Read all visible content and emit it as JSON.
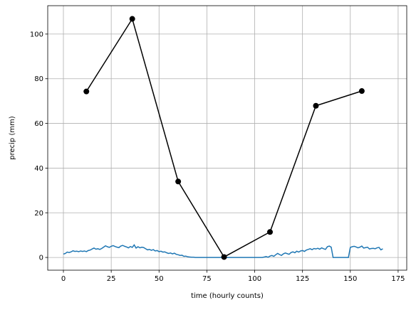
{
  "chart_data": {
    "type": "line",
    "xlabel": "time (hourly counts)",
    "ylabel": "precip (mm)",
    "xlim": [
      -8.2,
      179.5
    ],
    "ylim": [
      -5.7,
      112.7
    ],
    "xticks": [
      0,
      25,
      50,
      75,
      100,
      125,
      150,
      175
    ],
    "yticks": [
      0,
      20,
      40,
      60,
      80,
      100
    ],
    "grid": true,
    "series": [
      {
        "color": "#1f77b4",
        "marker": false,
        "x": [
          0,
          1,
          2,
          3,
          4,
          5,
          6,
          7,
          8,
          9,
          10,
          11,
          12,
          13,
          14,
          15,
          16,
          17,
          18,
          19,
          20,
          21,
          22,
          23,
          24,
          25,
          26,
          27,
          28,
          29,
          30,
          31,
          32,
          33,
          34,
          35,
          36,
          37,
          38,
          39,
          40,
          41,
          42,
          43,
          44,
          45,
          46,
          47,
          48,
          49,
          50,
          51,
          52,
          53,
          54,
          55,
          56,
          57,
          58,
          59,
          60,
          61,
          62,
          63,
          64,
          65,
          66,
          67,
          68,
          69,
          70,
          71,
          72,
          73,
          74,
          75,
          76,
          77,
          78,
          79,
          80,
          81,
          82,
          83,
          84,
          85,
          86,
          87,
          88,
          89,
          90,
          91,
          92,
          93,
          94,
          95,
          96,
          97,
          98,
          99,
          100,
          101,
          102,
          103,
          104,
          105,
          106,
          107,
          108,
          109,
          110,
          111,
          112,
          113,
          114,
          115,
          116,
          117,
          118,
          119,
          120,
          121,
          122,
          123,
          124,
          125,
          126,
          127,
          128,
          129,
          130,
          131,
          132,
          133,
          134,
          135,
          136,
          137,
          138,
          139,
          140,
          141,
          142,
          143,
          144,
          145,
          146,
          147,
          148,
          149,
          150,
          151,
          152,
          153,
          154,
          155,
          156,
          157,
          158,
          159,
          160,
          161,
          162,
          163,
          164,
          165,
          166,
          167
        ],
        "values": [
          1.5,
          1.8,
          2.4,
          2.2,
          2.5,
          3.0,
          2.7,
          2.8,
          2.6,
          2.9,
          2.7,
          2.9,
          2.6,
          3.1,
          3.3,
          3.8,
          4.2,
          3.7,
          3.9,
          3.6,
          4.0,
          4.6,
          5.2,
          4.8,
          4.5,
          5.0,
          5.3,
          4.9,
          4.6,
          4.4,
          5.1,
          5.4,
          5.0,
          4.7,
          4.3,
          4.9,
          4.5,
          5.6,
          4.2,
          4.8,
          4.3,
          4.6,
          4.4,
          3.9,
          3.4,
          3.6,
          3.2,
          3.5,
          2.9,
          3.1,
          2.6,
          2.8,
          2.4,
          2.5,
          2.1,
          1.8,
          2.0,
          1.6,
          1.9,
          1.4,
          1.2,
          0.9,
          1.0,
          0.5,
          0.6,
          0.3,
          0.2,
          0.1,
          0.1,
          0,
          0,
          0,
          0,
          0,
          0,
          0,
          0,
          0,
          0,
          0,
          0,
          0,
          0,
          0,
          0,
          0,
          0,
          0,
          0,
          0,
          0,
          0,
          0,
          0,
          0,
          0,
          0,
          0,
          0,
          0,
          0,
          0,
          0,
          0,
          0,
          0.2,
          0.4,
          0.1,
          0.6,
          0.9,
          0.5,
          1.2,
          1.8,
          1.3,
          0.9,
          1.6,
          2.0,
          1.7,
          1.4,
          2.2,
          2.5,
          2.1,
          2.8,
          2.4,
          2.9,
          3.1,
          2.7,
          3.3,
          3.6,
          3.9,
          3.5,
          4.0,
          3.8,
          4.1,
          3.7,
          4.3,
          3.9,
          3.6,
          4.8,
          5.1,
          4.6,
          0,
          0,
          0,
          0,
          0,
          0,
          0,
          0,
          0,
          4.5,
          4.8,
          5.0,
          4.7,
          4.3,
          4.6,
          5.1,
          4.2,
          4.4,
          4.6,
          3.8,
          4.0,
          4.1,
          3.9,
          4.3,
          4.5,
          3.4,
          3.9
        ]
      },
      {
        "color": "#000000",
        "marker": true,
        "x": [
          12,
          36,
          60,
          84,
          108,
          132,
          156
        ],
        "values": [
          74.3,
          106.8,
          34.0,
          0.2,
          11.4,
          67.9,
          74.5
        ]
      }
    ]
  }
}
